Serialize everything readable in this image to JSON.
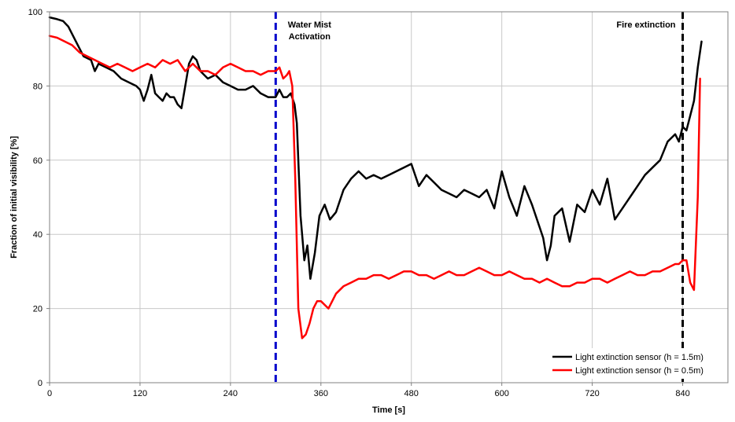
{
  "chart_data": {
    "type": "line",
    "title": "",
    "xlabel": "Time [s]",
    "ylabel": "Fraction of initial visibility [%]",
    "xlim": [
      0,
      900
    ],
    "ylim": [
      0,
      100
    ],
    "xticks": [
      0,
      120,
      240,
      360,
      480,
      600,
      720,
      840
    ],
    "yticks": [
      0,
      20,
      40,
      60,
      80,
      100
    ],
    "grid": true,
    "legend_position": "bottom-right",
    "annotations": [
      {
        "text_lines": [
          "Water Mist",
          "Activation"
        ],
        "x": 300,
        "color": "#0000cc",
        "style": "dashed"
      },
      {
        "text_lines": [
          "Fire extinction"
        ],
        "x": 840,
        "color": "#000000",
        "style": "dashed"
      }
    ],
    "series": [
      {
        "name": "Light extinction sensor (h = 1.5m)",
        "color": "#000000",
        "x": [
          0,
          10,
          18,
          25,
          35,
          45,
          55,
          60,
          65,
          75,
          85,
          95,
          105,
          115,
          120,
          125,
          130,
          135,
          140,
          145,
          150,
          155,
          160,
          165,
          170,
          175,
          180,
          185,
          190,
          195,
          200,
          210,
          220,
          230,
          240,
          250,
          260,
          270,
          280,
          290,
          300,
          305,
          310,
          315,
          320,
          325,
          328,
          333,
          338,
          342,
          346,
          352,
          358,
          365,
          372,
          380,
          390,
          400,
          410,
          420,
          430,
          440,
          450,
          460,
          470,
          480,
          490,
          500,
          510,
          520,
          530,
          540,
          550,
          560,
          570,
          580,
          590,
          600,
          610,
          620,
          630,
          640,
          650,
          655,
          660,
          665,
          670,
          680,
          690,
          700,
          710,
          720,
          730,
          740,
          750,
          760,
          770,
          780,
          790,
          800,
          810,
          820,
          825,
          830,
          835,
          840,
          845,
          850,
          855,
          860,
          865
        ],
        "y": [
          98.5,
          98,
          97.5,
          96,
          92,
          88,
          87,
          84,
          86,
          85,
          84,
          82,
          81,
          80,
          79,
          76,
          79,
          83,
          78,
          77,
          76,
          78,
          77,
          77,
          75,
          74,
          80,
          86,
          88,
          87,
          84,
          82,
          83,
          81,
          80,
          79,
          79,
          80,
          78,
          77,
          77,
          79,
          77,
          77,
          78,
          75,
          70,
          45,
          33,
          37,
          28,
          35,
          45,
          48,
          44,
          46,
          52,
          55,
          57,
          55,
          56,
          55,
          56,
          57,
          58,
          59,
          53,
          56,
          54,
          52,
          51,
          50,
          52,
          51,
          50,
          52,
          47,
          57,
          50,
          45,
          53,
          48,
          42,
          39,
          33,
          37,
          45,
          47,
          38,
          48,
          46,
          52,
          48,
          55,
          44,
          47,
          50,
          53,
          56,
          58,
          60,
          65,
          66,
          67,
          65,
          69,
          68,
          72,
          76,
          85,
          92
        ]
      },
      {
        "name": "Light extinction sensor (h = 0.5m)",
        "color": "#ff0000",
        "x": [
          0,
          10,
          20,
          30,
          40,
          50,
          60,
          70,
          80,
          90,
          100,
          110,
          120,
          130,
          140,
          150,
          160,
          170,
          180,
          190,
          200,
          210,
          220,
          230,
          240,
          250,
          260,
          270,
          280,
          290,
          300,
          305,
          310,
          315,
          318,
          322,
          326,
          330,
          335,
          340,
          345,
          350,
          355,
          360,
          370,
          380,
          390,
          400,
          410,
          420,
          430,
          440,
          450,
          460,
          470,
          480,
          490,
          500,
          510,
          520,
          530,
          540,
          550,
          560,
          570,
          580,
          590,
          600,
          610,
          620,
          630,
          640,
          650,
          660,
          670,
          680,
          690,
          700,
          710,
          720,
          730,
          740,
          750,
          760,
          770,
          780,
          790,
          800,
          810,
          820,
          830,
          835,
          840,
          845,
          850,
          855,
          860,
          863
        ],
        "y": [
          93.5,
          93,
          92,
          91,
          89,
          88,
          87,
          86,
          85,
          86,
          85,
          84,
          85,
          86,
          85,
          87,
          86,
          87,
          84,
          86,
          84,
          84,
          83,
          85,
          86,
          85,
          84,
          84,
          83,
          84,
          84,
          85,
          82,
          83,
          84,
          80,
          55,
          20,
          12,
          13,
          16,
          20,
          22,
          22,
          20,
          24,
          26,
          27,
          28,
          28,
          29,
          29,
          28,
          29,
          30,
          30,
          29,
          29,
          28,
          29,
          30,
          29,
          29,
          30,
          31,
          30,
          29,
          29,
          30,
          29,
          28,
          28,
          27,
          28,
          27,
          26,
          26,
          27,
          27,
          28,
          28,
          27,
          28,
          29,
          30,
          29,
          29,
          30,
          30,
          31,
          32,
          32,
          33,
          33,
          27,
          25,
          50,
          82
        ]
      }
    ]
  }
}
